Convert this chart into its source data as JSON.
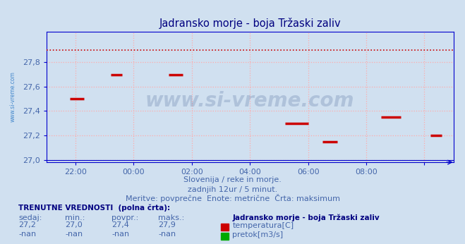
{
  "title": "Jadransko morje - boja Tržaski zaliv",
  "title_color": "#000080",
  "bg_color": "#d0e0f0",
  "plot_bg_color": "#d0e0f0",
  "grid_color": "#ffaaaa",
  "axis_color": "#0000cc",
  "tick_color": "#4466aa",
  "max_line_y": 27.9,
  "max_line_color": "#cc0000",
  "temperature_color": "#cc0000",
  "ylim_min": 27.0,
  "ylim_max": 28.0,
  "ytick_vals": [
    27.0,
    27.2,
    27.4,
    27.6,
    27.8
  ],
  "ytick_labels": [
    "27,0",
    "27,2",
    "27,4",
    "27,6",
    "27,8"
  ],
  "xtick_positions": [
    1,
    3,
    5,
    7,
    9,
    11,
    13
  ],
  "xtick_labels": [
    "22:00",
    "00:00",
    "02:00",
    "04:00",
    "06:00",
    "08:00",
    ""
  ],
  "xlim_min": 0,
  "xlim_max": 14,
  "segments": [
    {
      "x_start": 0.8,
      "x_end": 1.3,
      "y": 27.5
    },
    {
      "x_start": 2.2,
      "x_end": 2.6,
      "y": 27.7
    },
    {
      "x_start": 4.2,
      "x_end": 4.7,
      "y": 27.7
    },
    {
      "x_start": 8.2,
      "x_end": 9.0,
      "y": 27.3
    },
    {
      "x_start": 9.5,
      "x_end": 10.0,
      "y": 27.15
    },
    {
      "x_start": 11.5,
      "x_end": 12.2,
      "y": 27.35
    },
    {
      "x_start": 13.2,
      "x_end": 13.6,
      "y": 27.2
    }
  ],
  "subtitle1": "Slovenija / reke in morje.",
  "subtitle2": "zadnjih 12ur / 5 minut.",
  "subtitle3": "Meritve: povprečne  Enote: metrične  Črta: maksimum",
  "subtitle_color": "#4466aa",
  "watermark": "www.si-vreme.com",
  "watermark_color": "#1a3a7a",
  "watermark_alpha": 0.18,
  "label_left": "www.si-vreme.com",
  "label_left_color": "#4488cc",
  "legend_title": "Jadransko morje - boja Tržaski zaliv",
  "legend_color": "#000080",
  "current_label": "TRENUTNE VREDNOSTI  (polna črta):",
  "current_color": "#000080",
  "col_headers": [
    "sedaj:",
    "min.:",
    "povpr.:",
    "maks.:"
  ],
  "row1_vals": [
    "27,2",
    "27,0",
    "27,4",
    "27,9"
  ],
  "row2_vals": [
    "-nan",
    "-nan",
    "-nan",
    "-nan"
  ],
  "series1_label": "temperatura[C]",
  "series1_color": "#cc0000",
  "series2_label": "pretok[m3/s]",
  "series2_color": "#00aa00",
  "figsize": [
    6.59,
    3.46
  ],
  "dpi": 100
}
